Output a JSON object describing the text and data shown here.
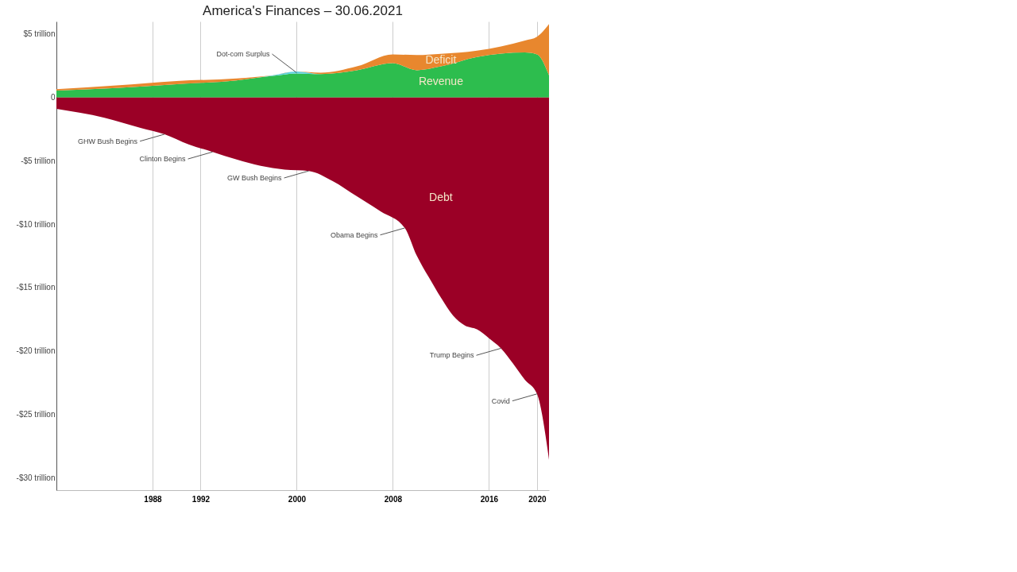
{
  "chart_data": {
    "type": "area",
    "title": "America's Finances – 30.06.2021",
    "stacked": true,
    "series": [
      {
        "name": "Revenue",
        "color": "#2dbd4e",
        "x": [
          1980,
          1985,
          1990,
          1995,
          1998,
          2000,
          2002,
          2005,
          2008,
          2010,
          2012,
          2015,
          2019,
          2020,
          2021
        ],
        "values": [
          0.55,
          0.75,
          1.05,
          1.35,
          1.7,
          1.9,
          1.85,
          2.15,
          2.7,
          2.15,
          2.45,
          3.2,
          3.55,
          3.4,
          1.75
        ]
      },
      {
        "color": "#5fd3e0",
        "x": [
          1980,
          1985,
          1990,
          1995,
          1998,
          2000,
          2002,
          2005,
          2008,
          2010,
          2012,
          2015,
          2019,
          2020,
          2021
        ],
        "values": [
          0,
          0,
          0,
          0,
          0.05,
          0.15,
          0,
          0,
          0,
          0,
          0,
          0,
          0,
          0,
          0
        ]
      },
      {
        "name": "Deficit",
        "color": "#e8872e",
        "x": [
          1980,
          1985,
          1990,
          1995,
          1998,
          2000,
          2002,
          2005,
          2008,
          2010,
          2012,
          2015,
          2019,
          2020,
          2021
        ],
        "values": [
          0.1,
          0.2,
          0.25,
          0.15,
          0,
          0,
          0.1,
          0.3,
          0.7,
          1.2,
          1.0,
          0.5,
          0.95,
          1.4,
          4.05
        ]
      },
      {
        "name": "Debt",
        "color": "#9b0026",
        "x": [
          1980,
          1984,
          1987,
          1989,
          1991,
          1993,
          1995,
          1997,
          1999,
          2001,
          2003,
          2005,
          2007,
          2009,
          2010,
          2011,
          2012,
          2013,
          2014,
          2015,
          2016,
          2017,
          2018,
          2019,
          2020,
          2021
        ],
        "values": [
          -0.9,
          -1.6,
          -2.4,
          -2.9,
          -3.7,
          -4.3,
          -4.9,
          -5.4,
          -5.7,
          -5.8,
          -6.6,
          -7.8,
          -9.0,
          -10.3,
          -12.5,
          -14.2,
          -15.8,
          -17.2,
          -18.0,
          -18.3,
          -19.0,
          -19.8,
          -21.0,
          -22.3,
          -23.4,
          -28.6
        ]
      }
    ],
    "xlim": [
      1980,
      2021
    ],
    "xticks": [
      1988,
      1992,
      2000,
      2008,
      2016,
      2020
    ],
    "ylim": [
      -31,
      6
    ],
    "yticks": [
      {
        "value": 5,
        "label": "$5 trillion"
      },
      0,
      {
        "value": -5,
        "label": "-$5 trillion"
      },
      {
        "value": -10,
        "label": "-$10 trillion"
      },
      {
        "value": -15,
        "label": "-$15 trillion"
      },
      {
        "value": -20,
        "label": "-$20 trillion"
      },
      {
        "value": -25,
        "label": "-$25 trillion"
      },
      {
        "value": -30,
        "label": "-$30 trillion"
      }
    ],
    "grid": "x",
    "annotations": [
      {
        "text": "Dot-com Surplus",
        "x": 2000,
        "y": 1.95
      },
      {
        "text": "GHW Bush Begins",
        "x": 1989,
        "y": -2.9
      },
      {
        "text": "Clinton Begins",
        "x": 1993,
        "y": -4.3
      },
      {
        "text": "GW Bush Begins",
        "x": 2001,
        "y": -5.8
      },
      {
        "text": "Obama Begins",
        "x": 2009,
        "y": -10.3
      },
      {
        "text": "Trump Begins",
        "x": 2017,
        "y": -19.8
      },
      {
        "text": "Covid",
        "x": 2020,
        "y": -23.4
      }
    ]
  }
}
